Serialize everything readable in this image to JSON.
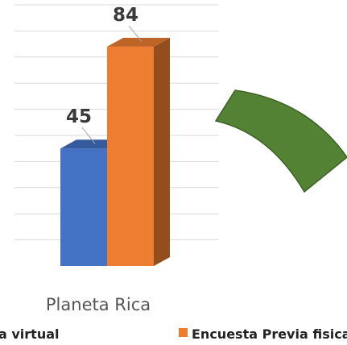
{
  "chart_data": {
    "type": "bar",
    "categories": [
      "Planeta Rica"
    ],
    "series": [
      {
        "name": "Encuesta Previa virtual",
        "values": [
          45
        ],
        "color": "#4472C4"
      },
      {
        "name": "Encuesta Previa fisica",
        "values": [
          84
        ],
        "color": "#ED7D31"
      }
    ],
    "ylim": [
      0,
      100
    ],
    "grid": true,
    "legend_position": "bottom",
    "title": "",
    "xlabel": "",
    "ylabel": ""
  },
  "legend": {
    "item_0_text": "a virtual",
    "item_1_text": "Encuesta Previa fisica"
  },
  "decoration": {
    "arc_color": "#548235"
  }
}
